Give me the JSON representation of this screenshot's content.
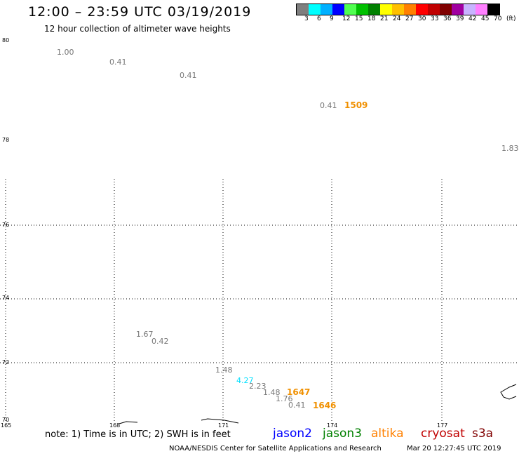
{
  "header": {
    "title": "12:00 – 23:59 UTC 03/19/2019",
    "subtitle": "12 hour collection of altimeter wave heights"
  },
  "colorscale": {
    "colors": [
      "#7f7f7f",
      "#00ffff",
      "#00b0ff",
      "#0000ff",
      "#50ff50",
      "#00c000",
      "#008000",
      "#ffff00",
      "#ffc000",
      "#ff8000",
      "#ff0000",
      "#c00000",
      "#800000",
      "#a000a0",
      "#c8b4ff",
      "#ff80ff",
      "#000000"
    ],
    "labels": [
      "3",
      "6",
      "9",
      "12",
      "15",
      "18",
      "21",
      "24",
      "27",
      "30",
      "33",
      "36",
      "39",
      "42",
      "45",
      "70",
      "(ft)"
    ]
  },
  "map": {
    "lat_labels": [
      "80",
      "78",
      "76",
      "74",
      "72",
      "70"
    ],
    "lon_labels": [
      "165",
      "168",
      "171",
      "174",
      "177"
    ],
    "wave_heights": [
      {
        "text": "1.00"
      },
      {
        "text": "0.41"
      },
      {
        "text": "0.41"
      },
      {
        "text": "0.41"
      },
      {
        "text": "1.83"
      },
      {
        "text": "1.67"
      },
      {
        "text": "0.42"
      },
      {
        "text": "1.48"
      },
      {
        "text": "4.27"
      },
      {
        "text": "2.23"
      },
      {
        "text": "1.48"
      },
      {
        "text": "1.76"
      },
      {
        "text": "0.41"
      }
    ],
    "pass_times": [
      {
        "text": "1509"
      },
      {
        "text": "1647"
      },
      {
        "text": "1646"
      }
    ]
  },
  "legend": {
    "note": "note: 1) Time is in UTC; 2) SWH is in feet",
    "satellites": [
      {
        "name": "jason2",
        "color": "#0000ff"
      },
      {
        "name": "jason3",
        "color": "#008000"
      },
      {
        "name": "altika",
        "color": "#ff8000"
      },
      {
        "name": "cryosat",
        "color": "#c00000"
      },
      {
        "name": "s3a",
        "color": "#800000"
      }
    ]
  },
  "footer": {
    "center": "NOAA/NESDIS Center for Satellite Applications and Research",
    "timestamp": "Mar 20 12:27:45 UTC 2019"
  }
}
